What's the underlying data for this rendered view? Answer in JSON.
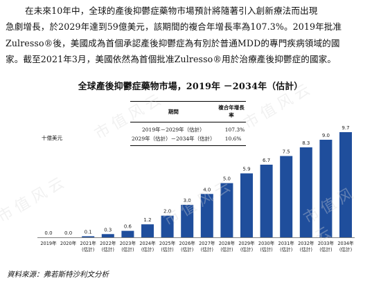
{
  "paragraph": {
    "line1": "在未來10年中，全球的產後抑鬱症藥物市場預計將隨著引入創新療法而出現",
    "line2": "急劇增長，於2029年達到59億美元，該期間的複合年增長率為107.3%。2019年批准",
    "line3": "Zulresso®後，美國成為首個承認產後抑鬱症為有別於普通MDD的專門疾病領域的國",
    "line4": "家。截至2021年3月，美國依然為首個批准Zulresso®用於治療產後抑鬱症的國家。"
  },
  "cagr_table": {
    "header_period": "期間",
    "header_cagr": "複合年增長率",
    "rows": [
      {
        "period": "2019年－2029年（估計）",
        "cagr": "107.3%"
      },
      {
        "period": "2029年（估計）－2034年（估計）",
        "cagr": "10.6%"
      }
    ]
  },
  "source": "資料來源：弗若斯特沙利文分析",
  "watermark": "市值风云",
  "colors": {
    "bar": "#1f4e9c",
    "text": "#111111"
  },
  "chart_data": {
    "type": "bar",
    "title": "全球產後抑鬱症藥物市場，2019年 －2034年（估計）",
    "ylabel": "十億美元",
    "categories": [
      [
        "2019年"
      ],
      [
        "2020年"
      ],
      [
        "2021年",
        "(估計)"
      ],
      [
        "2022年",
        "(估計)"
      ],
      [
        "2023年",
        "(估計)"
      ],
      [
        "2024年",
        "(估計)"
      ],
      [
        "2025年",
        "(估計)"
      ],
      [
        "2026年",
        "(估計)"
      ],
      [
        "2027年",
        "(估計)"
      ],
      [
        "2028年",
        "(估計)"
      ],
      [
        "2029年",
        "(估計)"
      ],
      [
        "2030年",
        "(估計)"
      ],
      [
        "2031年",
        "(估計)"
      ],
      [
        "2032年",
        "(估計)"
      ],
      [
        "2033年",
        "(估計)"
      ],
      [
        "2034年",
        "(估計)"
      ]
    ],
    "values": [
      0.0,
      0.0,
      0.1,
      0.3,
      0.6,
      1.2,
      2.0,
      3.0,
      4.0,
      5.0,
      5.9,
      6.7,
      7.5,
      8.3,
      9.0,
      9.7
    ],
    "value_labels": [
      "0.0",
      "0.0",
      "0.1",
      "0.3",
      "0.6",
      "1.2",
      "2.0",
      "3.0",
      "4.0",
      "5.0",
      "5.9",
      "6.7",
      "7.5",
      "8.3",
      "9.0",
      "9.7"
    ],
    "ylim": [
      0,
      9.7
    ],
    "grid": false
  }
}
